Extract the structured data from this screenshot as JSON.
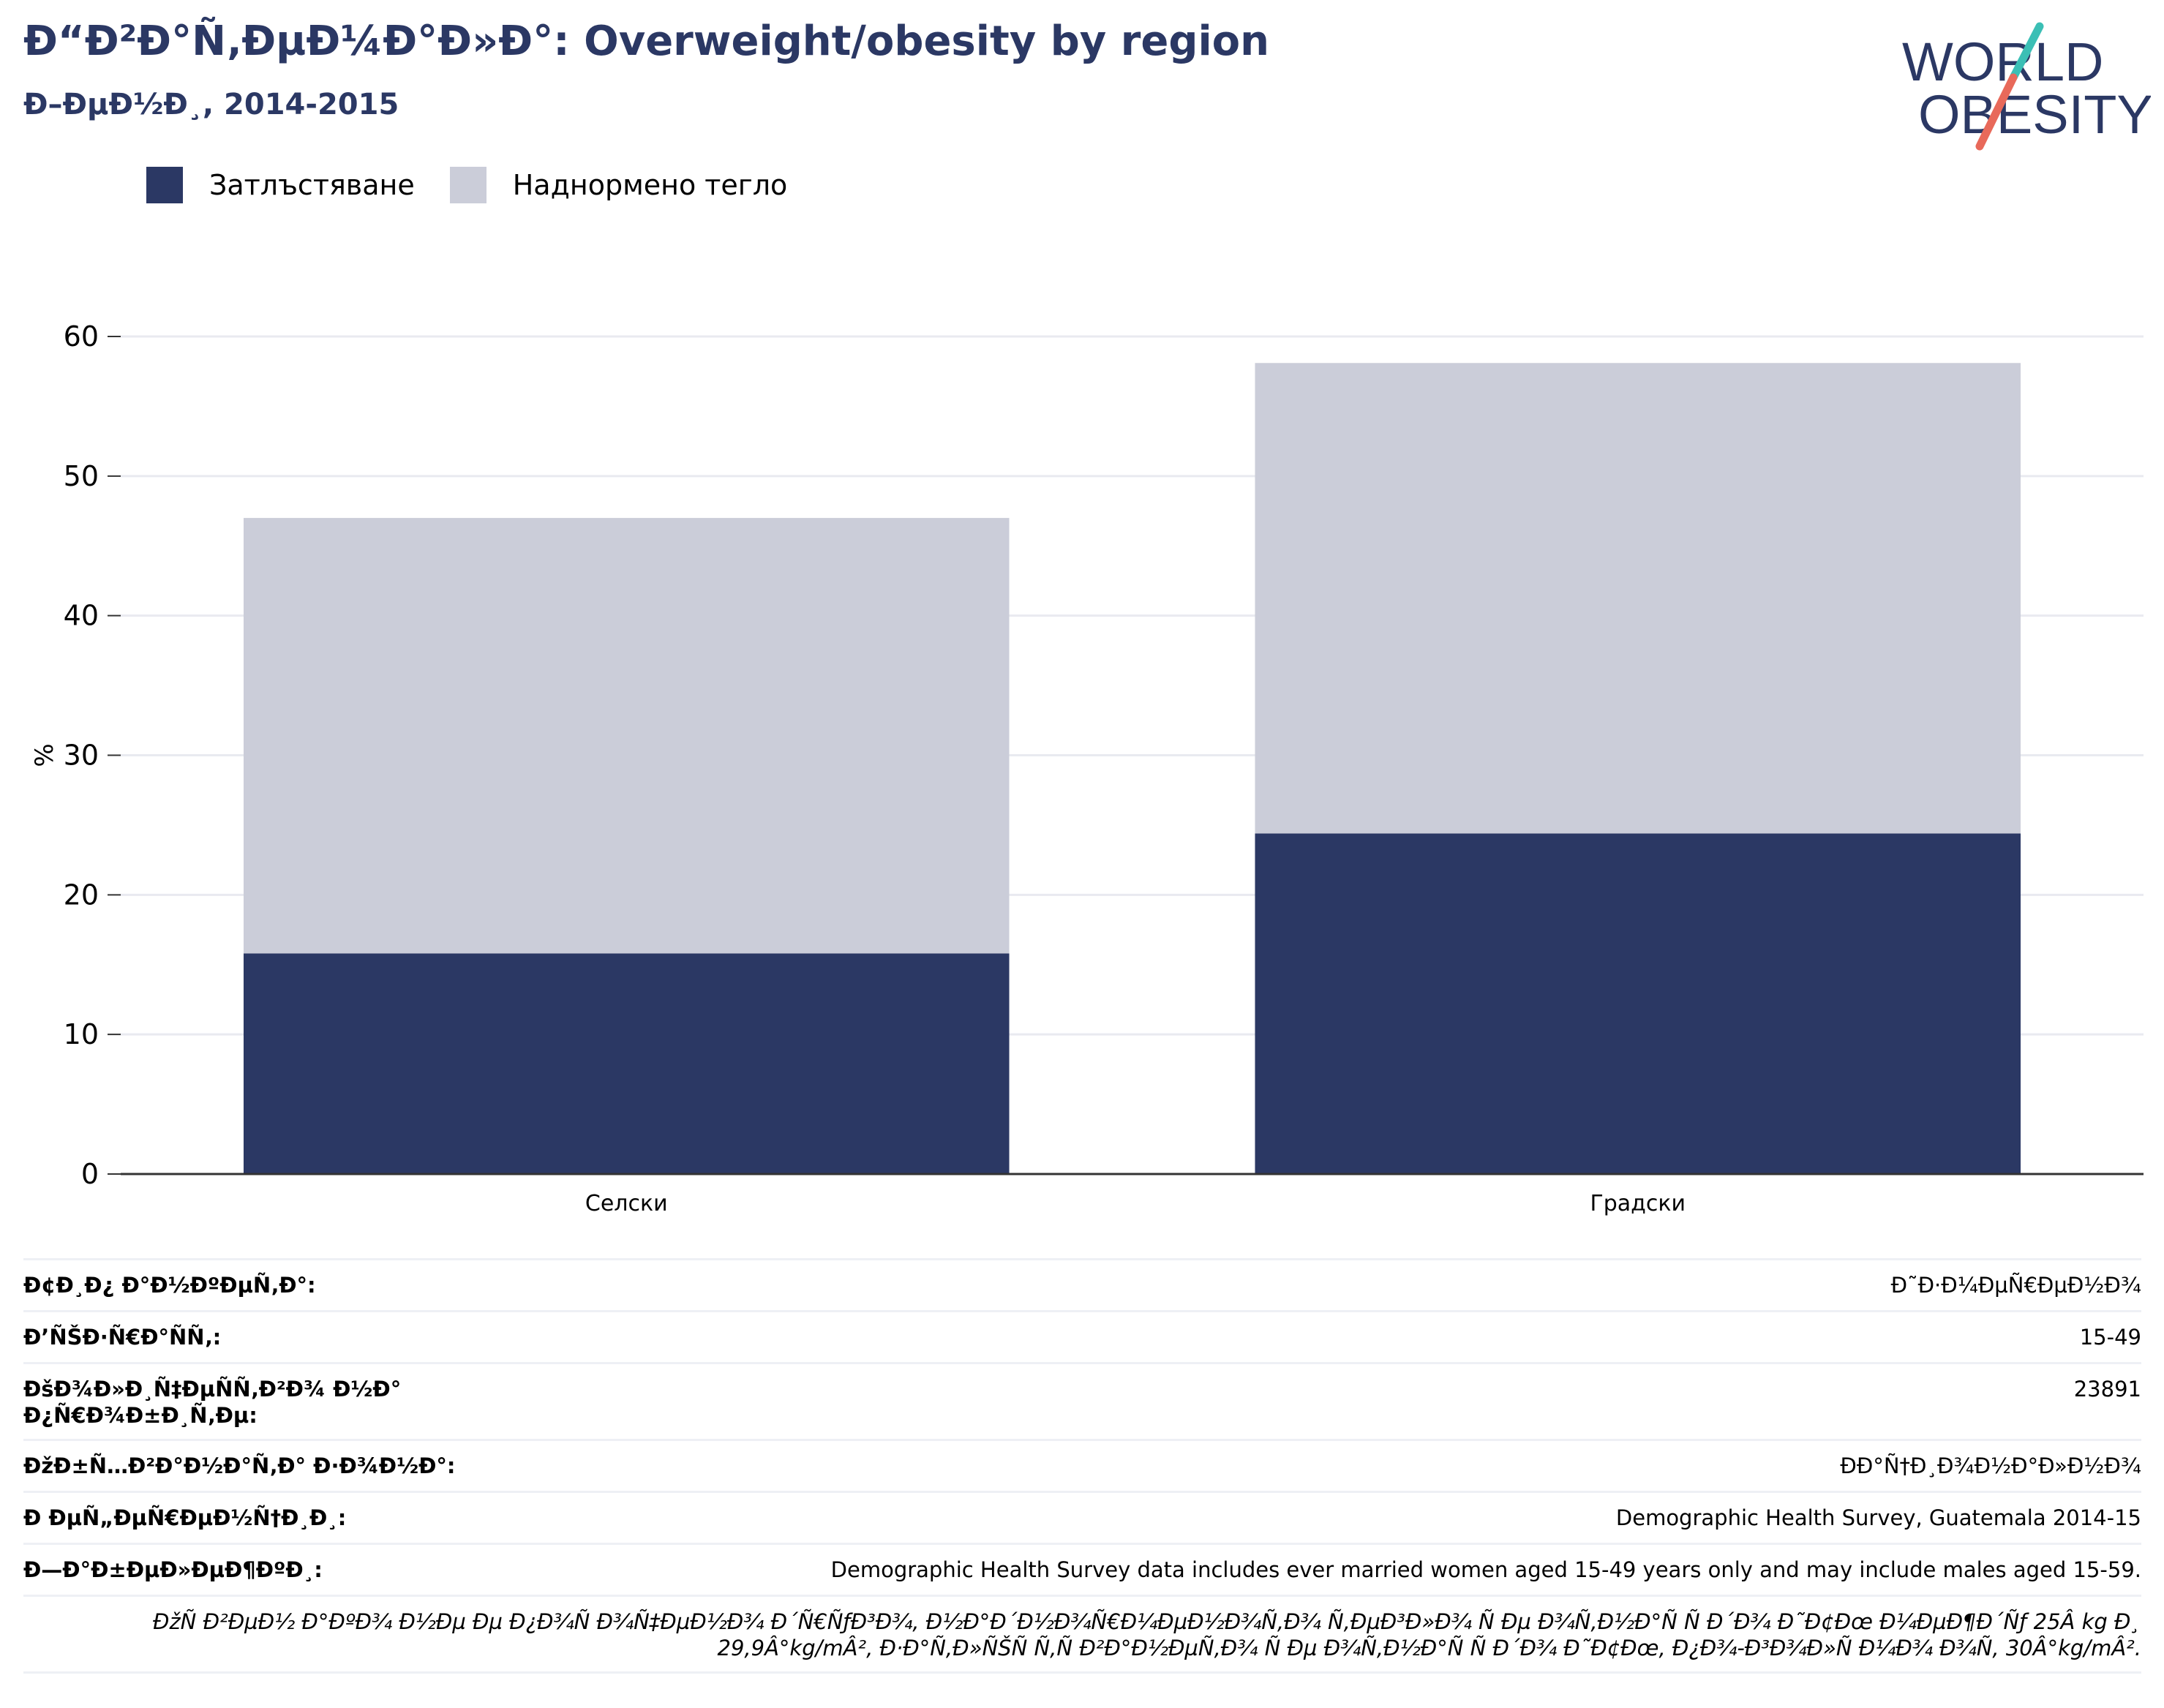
{
  "header": {
    "title": "Ð“Ð²Ð°Ñ‚ÐµÐ¼Ð°Ð»Ð°: Overweight/obesity by region",
    "subtitle": "Ð–ÐµÐ½Ð¸, 2014-2015"
  },
  "logo": {
    "line1": "WORLD",
    "line2": "OBESITY",
    "colors": {
      "text": "#2b3864",
      "slash_top": "#3bbfb5",
      "slash_bottom": "#e8695a"
    }
  },
  "colors": {
    "obesity": "#2b3864",
    "overweight": "#cbcdd9",
    "grid": "#e9eaf0",
    "axis": "#333333"
  },
  "chart_data": {
    "type": "bar",
    "stacked": true,
    "categories": [
      "Селски",
      "Градски"
    ],
    "series": [
      {
        "name": "Затлъстяване",
        "values": [
          15.8,
          24.4
        ]
      },
      {
        "name": "Наднормено тегло",
        "values": [
          31.2,
          33.7
        ]
      }
    ],
    "ylabel": "%",
    "ylim": [
      0,
      60
    ],
    "yticks": [
      0,
      10,
      20,
      30,
      40,
      50,
      60
    ],
    "grid": true,
    "legend": "top-left"
  },
  "meta": {
    "rows": [
      {
        "label": "Ð¢Ð¸Ð¿ Ð°Ð½ÐºÐµÑ‚Ð°:",
        "value": "Ð˜Ð·Ð¼ÐµÑ€ÐµÐ½Ð¾"
      },
      {
        "label": "Ð’ÑŠÐ·Ñ€Ð°ÑÑ‚:",
        "value": "15-49"
      },
      {
        "label": "ÐšÐ¾Ð»Ð¸Ñ‡ÐµÑÑ‚Ð²Ð¾ Ð½Ð° Ð¿Ñ€Ð¾Ð±Ð¸Ñ‚Ðµ:",
        "value": "23891"
      },
      {
        "label": "ÐžÐ±Ñ…Ð²Ð°Ð½Ð°Ñ‚Ð° Ð·Ð¾Ð½Ð°:",
        "value": "ÐÐ°Ñ†Ð¸Ð¾Ð½Ð°Ð»Ð½Ð¾"
      },
      {
        "label": "Ð ÐµÑ„ÐµÑ€ÐµÐ½Ñ†Ð¸Ð¸:",
        "value": "Demographic Health Survey, Guatemala 2014-15"
      },
      {
        "label": "Ð—Ð°Ð±ÐµÐ»ÐµÐ¶ÐºÐ¸:",
        "value": "Demographic Health Survey data includes ever married women aged 15-49 years only and may include males aged 15-59."
      }
    ],
    "note": "ÐžÑ Ð²ÐµÐ½ Ð°ÐºÐ¾ Ð½Ðµ Ðµ Ð¿Ð¾Ñ Ð¾Ñ‡ÐµÐ½Ð¾ Ð´Ñ€ÑƒÐ³Ð¾, Ð½Ð°Ð´Ð½Ð¾Ñ€Ð¼ÐµÐ½Ð¾Ñ‚Ð¾ Ñ‚ÐµÐ³Ð»Ð¾ Ñ Ðµ Ð¾Ñ‚Ð½Ð°Ñ Ñ Ð´Ð¾ Ð˜Ð¢Ðœ Ð¼ÐµÐ¶Ð´Ñƒ 25Â kg Ð¸ 29,9Â°kg/mÂ², Ð·Ð°Ñ‚Ð»ÑŠÑ Ñ‚Ñ Ð²Ð°Ð½ÐµÑ‚Ð¾ Ñ Ðµ Ð¾Ñ‚Ð½Ð°Ñ Ñ Ð´Ð¾ Ð˜Ð¢Ðœ, Ð¿Ð¾-Ð³Ð¾Ð»Ñ Ð¼Ð¾ Ð¾Ñ‚ 30Â°kg/mÂ²."
  }
}
